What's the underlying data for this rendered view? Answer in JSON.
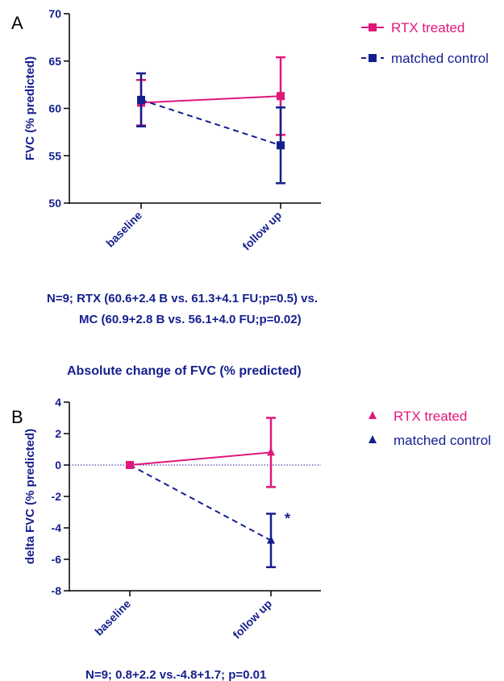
{
  "colors": {
    "rtx": "#e0177a",
    "mc": "#141f8e",
    "axis": "#000000",
    "navy": "#141f8e"
  },
  "chart_data": [
    {
      "panel_label": "A",
      "type": "line",
      "title": "",
      "ylabel": "FVC (% predicted)",
      "xlabel": "",
      "categories": [
        "baseline",
        "follow up"
      ],
      "ylim": [
        50,
        70
      ],
      "yticks": [
        "50",
        "55",
        "60",
        "65",
        "70"
      ],
      "legend_position": "top-right",
      "series": [
        {
          "name": "RTX treated",
          "values": [
            60.6,
            61.3
          ],
          "err": [
            2.4,
            4.1
          ],
          "color": "#e0177a",
          "marker": "square",
          "dashed": false
        },
        {
          "name": "matched control",
          "values": [
            60.9,
            56.1
          ],
          "err": [
            2.8,
            4.0
          ],
          "color": "#141f8e",
          "marker": "square",
          "dashed": true
        }
      ],
      "caption": [
        "N=9; RTX (60.6+2.4 B vs. 61.3+4.1 FU;p=0.5) vs.",
        "MC (60.9+2.8 B vs. 56.1+4.0 FU;p=0.02)"
      ]
    },
    {
      "panel_label": "B",
      "type": "line",
      "title": "Absolute change of FVC (% predicted)",
      "ylabel": "delta FVC (% predicted)",
      "xlabel": "",
      "categories": [
        "baseline",
        "follow up"
      ],
      "ylim": [
        -8,
        4
      ],
      "yticks": [
        "-8",
        "-6",
        "-4",
        "-2",
        "0",
        "2",
        "4"
      ],
      "legend_position": "right",
      "reference_line": 0,
      "significance_marker": "*",
      "series": [
        {
          "name": "RTX treated",
          "values": [
            0,
            0.8
          ],
          "err": [
            0,
            2.2
          ],
          "color": "#e0177a",
          "marker": "triangle",
          "dashed": false
        },
        {
          "name": "matched control",
          "values": [
            0,
            -4.8
          ],
          "err": [
            0,
            1.7
          ],
          "color": "#141f8e",
          "marker": "triangle",
          "dashed": true
        }
      ],
      "caption": [
        "N=9; 0.8+2.2 vs.-4.8+1.7; p=0.01"
      ]
    }
  ]
}
